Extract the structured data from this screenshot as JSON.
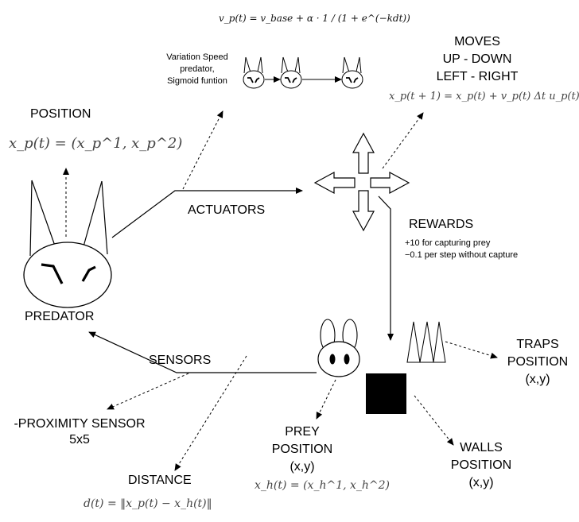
{
  "formulas": {
    "speed": "v_p(t) = v_base + α · 1 / (1 + e^(−kdt))",
    "position_predator": "x_p(t) = (x_p^1, x_p^2)",
    "moves": "x_p(t + 1) = x_p(t) + v_p(t) Δt u_p(t),",
    "position_prey": "x_h(t) = (x_h^1, x_h^2)",
    "distance": "d(t) = ‖x_p(t) − x_h(t)‖"
  },
  "variation": {
    "line1": "Variation Speed",
    "line2": "predator,",
    "line3": "Sigmoid funtion"
  },
  "moves": {
    "line1": "MOVES",
    "line2": "UP - DOWN",
    "line3": "LEFT - RIGHT"
  },
  "position_title": "POSITION",
  "predator_label": "PREDATOR",
  "actuators_label": "ACTUATORS",
  "rewards": {
    "title": "REWARDS",
    "line1": "+10 for capturing prey",
    "line2": "−0.1 per step without capture"
  },
  "sensors_label": "SENSORS",
  "proximity": {
    "line1": "-PROXIMITY SENSOR",
    "line2": "5x5"
  },
  "distance_label": "DISTANCE",
  "prey": {
    "line1": "PREY",
    "line2": "POSITION",
    "line3": "(x,y)"
  },
  "walls": {
    "line1": "WALLS",
    "line2": "POSITION",
    "line3": "(x,y)"
  },
  "traps": {
    "line1": "TRAPS",
    "line2": "POSITION",
    "line3": "(x,y)"
  }
}
